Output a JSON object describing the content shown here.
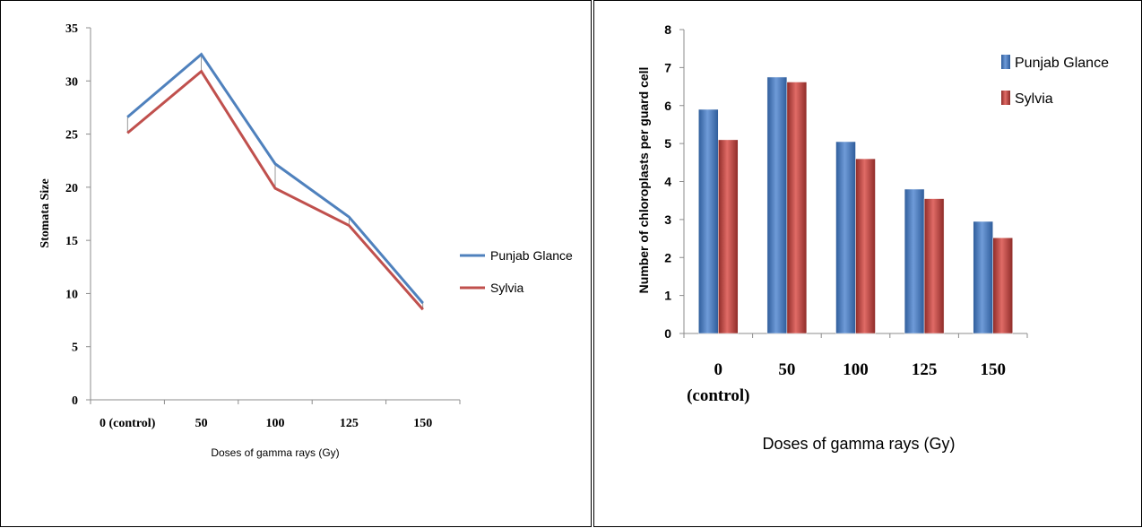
{
  "chart_data": [
    {
      "type": "line",
      "ylabel": "Stomata Size",
      "xlabel": "Doses of gamma rays (Gy)",
      "categories": [
        "0 (control)",
        "50",
        "100",
        "125",
        "150"
      ],
      "ylim": [
        0,
        35
      ],
      "yticks": [
        0,
        5,
        10,
        15,
        20,
        25,
        30,
        35
      ],
      "grid": false,
      "legend_position": "right",
      "series": [
        {
          "name": "Punjab Glance",
          "color": "#4F81BD",
          "values": [
            26.6,
            32.5,
            22.2,
            17.2,
            9.1
          ]
        },
        {
          "name": "Sylvia",
          "color": "#C0504D",
          "values": [
            25.1,
            30.9,
            19.9,
            16.4,
            8.5
          ]
        }
      ]
    },
    {
      "type": "bar",
      "ylabel": "Number of chloroplasts per guard cell",
      "xlabel": "Doses of gamma rays (Gy)",
      "categories": [
        "0\n(control)",
        "50",
        "100",
        "125",
        "150"
      ],
      "ylim": [
        0,
        8
      ],
      "yticks": [
        0,
        1,
        2,
        3,
        4,
        5,
        6,
        7,
        8
      ],
      "grid": false,
      "legend_position": "top-right",
      "series": [
        {
          "name": "Punjab Glance",
          "color": "#4F81BD",
          "values": [
            5.9,
            6.75,
            5.05,
            3.8,
            2.95
          ]
        },
        {
          "name": "Sylvia",
          "color": "#C0504D",
          "values": [
            5.1,
            6.62,
            4.6,
            3.55,
            2.52
          ]
        }
      ]
    }
  ]
}
